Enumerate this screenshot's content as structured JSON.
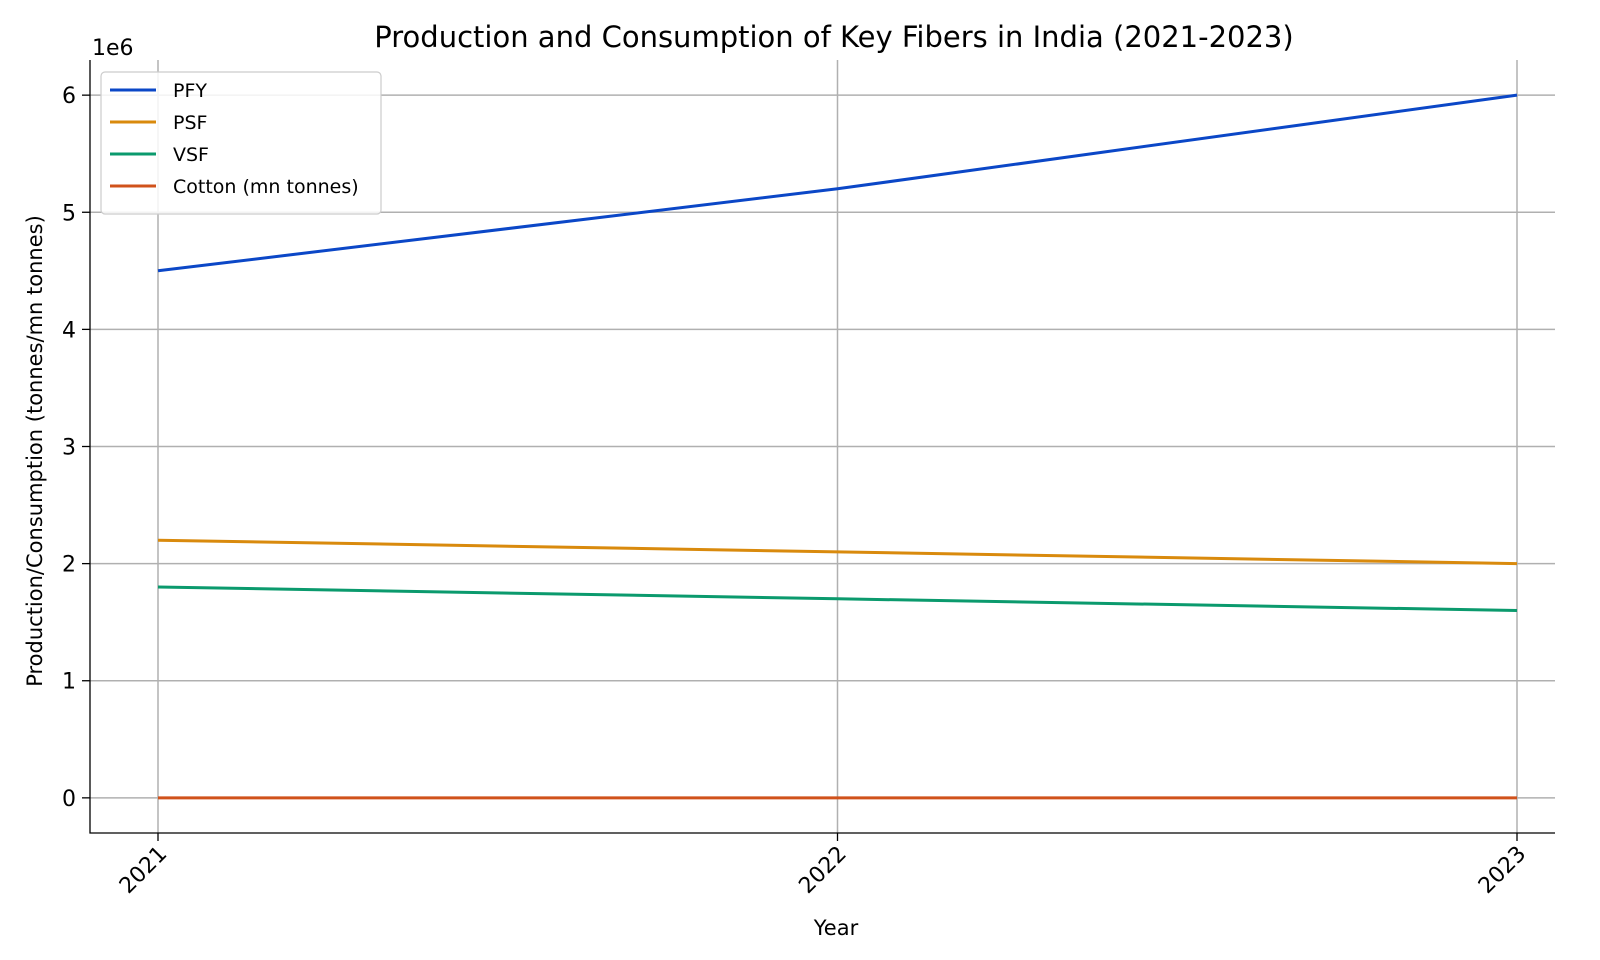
{
  "chart_data": {
    "type": "line",
    "title": "Production and Consumption of Key Fibers in India (2021-2023)",
    "xlabel": "Year",
    "ylabel": "Production/Consumption (tonnes/mn tonnes)",
    "y_offset_label": "1e6",
    "x": [
      "2021",
      "2022",
      "2023"
    ],
    "ylim": [
      -300000,
      6300000
    ],
    "yticks": [
      0,
      1000000,
      2000000,
      3000000,
      4000000,
      5000000,
      6000000
    ],
    "ytick_labels": [
      "0",
      "1",
      "2",
      "3",
      "4",
      "5",
      "6"
    ],
    "grid": true,
    "legend_position": "top-left",
    "series": [
      {
        "name": "PFY",
        "color": "#0b47c7",
        "values": [
          4500000,
          5200000,
          6000000
        ]
      },
      {
        "name": "PSF",
        "color": "#d98a0d",
        "values": [
          2200000,
          2100000,
          2000000
        ]
      },
      {
        "name": "VSF",
        "color": "#0b9a6d",
        "values": [
          1800000,
          1700000,
          1600000
        ]
      },
      {
        "name": "Cotton (mn tonnes)",
        "color": "#d0521b",
        "values": [
          5.5,
          5.8,
          6.0
        ]
      }
    ]
  }
}
